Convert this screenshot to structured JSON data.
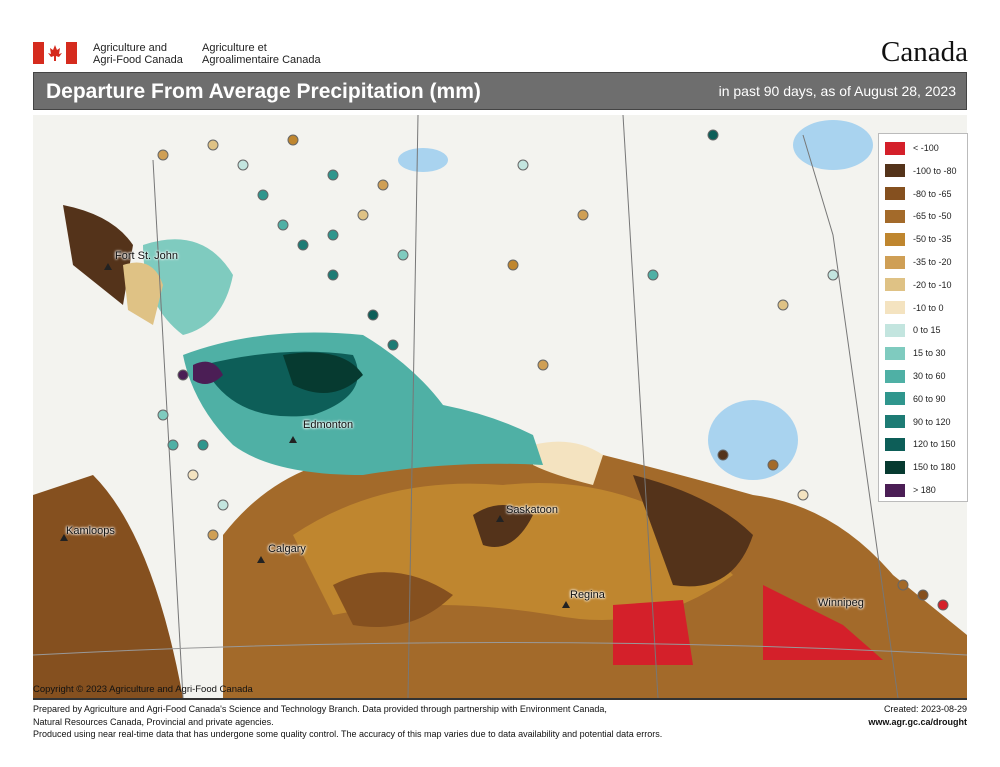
{
  "header": {
    "dept_en": [
      "Agriculture and",
      "Agri-Food Canada"
    ],
    "dept_fr": [
      "Agriculture et",
      "Agroalimentaire Canada"
    ],
    "wordmark": "Canada"
  },
  "title": "Departure From Average Precipitation (mm)",
  "subtitle": "in past 90 days, as of August 28, 2023",
  "legend": [
    {
      "label": "< -100",
      "color": "#d4202a"
    },
    {
      "label": "-100 to -80",
      "color": "#54331a"
    },
    {
      "label": "-80 to -65",
      "color": "#85501f"
    },
    {
      "label": "-65 to -50",
      "color": "#a36a2a"
    },
    {
      "label": "-50 to -35",
      "color": "#bf862f"
    },
    {
      "label": "-35 to -20",
      "color": "#cf9f55"
    },
    {
      "label": "-20 to -10",
      "color": "#dfc285"
    },
    {
      "label": "-10 to 0",
      "color": "#f4e3c0"
    },
    {
      "label": "0 to 15",
      "color": "#c3e5df"
    },
    {
      "label": "15 to 30",
      "color": "#7fcbbf"
    },
    {
      "label": "30 to 60",
      "color": "#4fb0a5"
    },
    {
      "label": "60 to 90",
      "color": "#2f968d"
    },
    {
      "label": "90 to 120",
      "color": "#1d7b74"
    },
    {
      "label": "120 to 150",
      "color": "#0d5e58"
    },
    {
      "label": "150 to 180",
      "color": "#063a30"
    },
    {
      "label": "> 180",
      "color": "#4b1e55"
    }
  ],
  "cities": [
    "Fort St. John",
    "Edmonton",
    "Kamloops",
    "Calgary",
    "Saskatoon",
    "Regina",
    "Winnipeg"
  ],
  "copyright": "Copyright © 2023 Agriculture and Agri-Food Canada",
  "footer": {
    "line1": "Prepared by Agriculture and Agri-Food Canada's Science and Technology Branch. Data provided through partnership with Environment Canada,",
    "line2": "Natural Resources Canada, Provincial and private agencies.",
    "line3": "Produced using near real-time data that has undergone some quality control. The accuracy of this map varies due to data availability and potential data errors.",
    "created": "Created: 2023-08-29",
    "url": "www.agr.gc.ca/drought"
  }
}
